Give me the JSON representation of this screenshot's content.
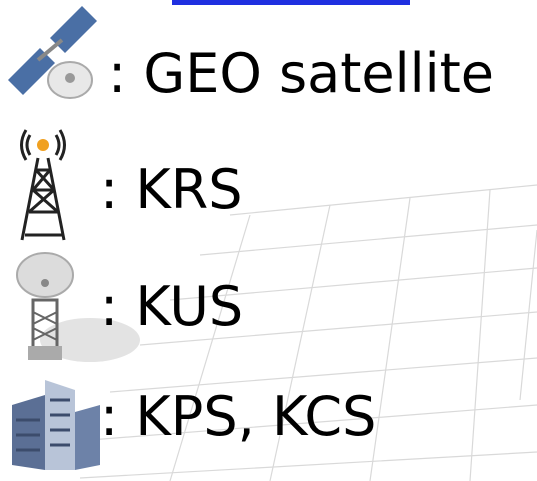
{
  "legend": {
    "items": [
      {
        "label": ": GEO satellite"
      },
      {
        "label": ": KRS"
      },
      {
        "label": ": KUS"
      },
      {
        "label": ": KPS, KCS"
      }
    ]
  }
}
